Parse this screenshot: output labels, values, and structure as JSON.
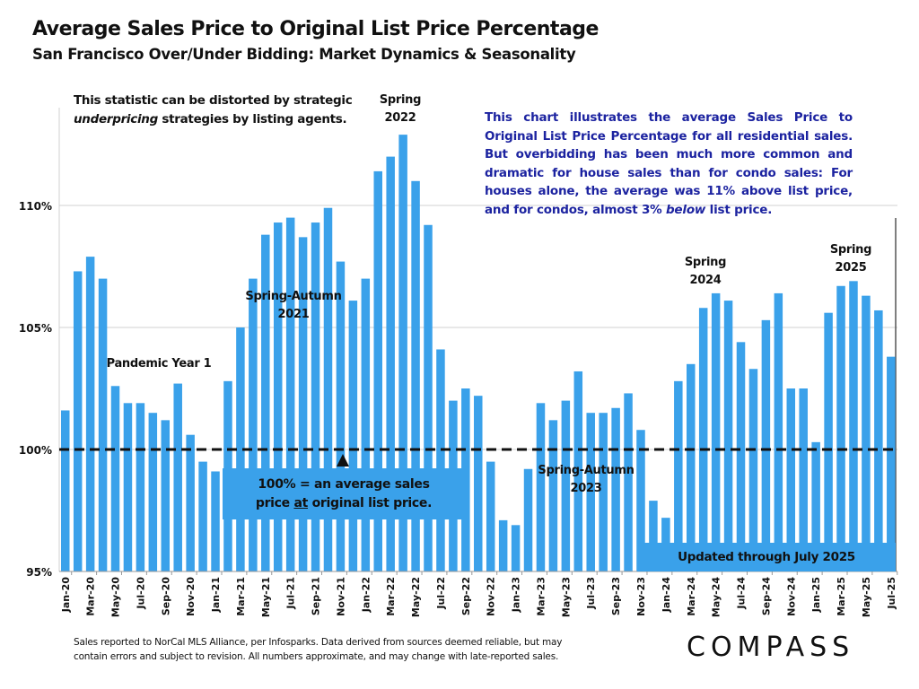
{
  "header": {
    "title": "Average Sales Price to Original List Price Percentage",
    "subtitle": "San Francisco Over/Under Bidding: Market Dynamics & Seasonality"
  },
  "notes": {
    "distortion_line1": "This statistic can be distorted by strategic",
    "distortion_em": "underpricing",
    "distortion_line2_rest": " strategies by listing agents.",
    "blue_part1": "This chart illustrates the average Sales Price to Original List Price Percentage for all residential sales. But overbidding has been much more common and dramatic for house sales than for condo sales:  For houses alone, the average was 11% above list price, and for condos, almost 3% ",
    "blue_em": "below",
    "blue_part2": " list price.",
    "box100_line1": "100% = an average sales",
    "box100_pre": "price ",
    "box100_u": "at",
    "box100_post": " original list price.",
    "updated": "Updated through July 2025",
    "footer1": "Sales reported to NorCal MLS Alliance, per Infosparks. Data derived from sources deemed reliable, but may",
    "footer2": "contain errors and subject to revision. All numbers approximate, and may change with late-reported sales.",
    "logo": "COMPASS"
  },
  "annotations": [
    {
      "id": "pandemic",
      "l1": "Pandemic Year 1",
      "l2": ""
    },
    {
      "id": "sa2021",
      "l1": "Spring-Autumn",
      "l2": "2021"
    },
    {
      "id": "s2022",
      "l1": "Spring",
      "l2": "2022"
    },
    {
      "id": "sa2023",
      "l1": "Spring-Autumn",
      "l2": "2023"
    },
    {
      "id": "s2024",
      "l1": "Spring",
      "l2": "2024"
    },
    {
      "id": "s2025",
      "l1": "Spring",
      "l2": "2025"
    }
  ],
  "colors": {
    "bar": "#3aa1ea",
    "blue_text": "#1c23a0",
    "grid": "#d0d0d0"
  },
  "chart_data": {
    "type": "bar",
    "title": "Average Sales Price to Original List Price Percentage",
    "xlabel": "",
    "ylabel": "",
    "ylim": [
      95,
      115
    ],
    "yticks": [
      95,
      100,
      105,
      110
    ],
    "ytick_labels": [
      "95%",
      "100%",
      "105%",
      "110%"
    ],
    "reference_line": 100,
    "grid": true,
    "categories": [
      "Jan-20",
      "Feb-20",
      "Mar-20",
      "Apr-20",
      "May-20",
      "Jun-20",
      "Jul-20",
      "Aug-20",
      "Sep-20",
      "Oct-20",
      "Nov-20",
      "Dec-20",
      "Jan-21",
      "Feb-21",
      "Mar-21",
      "Apr-21",
      "May-21",
      "Jun-21",
      "Jul-21",
      "Aug-21",
      "Sep-21",
      "Oct-21",
      "Nov-21",
      "Dec-21",
      "Jan-22",
      "Feb-22",
      "Mar-22",
      "Apr-22",
      "May-22",
      "Jun-22",
      "Jul-22",
      "Aug-22",
      "Sep-22",
      "Oct-22",
      "Nov-22",
      "Dec-22",
      "Jan-23",
      "Feb-23",
      "Mar-23",
      "Apr-23",
      "May-23",
      "Jun-23",
      "Jul-23",
      "Aug-23",
      "Sep-23",
      "Oct-23",
      "Nov-23",
      "Dec-23",
      "Jan-24",
      "Feb-24",
      "Mar-24",
      "Apr-24",
      "May-24",
      "Jun-24",
      "Jul-24",
      "Aug-24",
      "Sep-24",
      "Oct-24",
      "Nov-24",
      "Dec-24",
      "Jan-25",
      "Feb-25",
      "Mar-25",
      "Apr-25",
      "May-25",
      "Jun-25",
      "Jul-25"
    ],
    "values": [
      101.6,
      107.3,
      107.9,
      107.0,
      102.6,
      101.9,
      101.9,
      101.5,
      101.2,
      102.7,
      100.6,
      99.5,
      99.1,
      102.8,
      105.0,
      107.0,
      108.8,
      109.3,
      109.5,
      108.7,
      109.3,
      109.9,
      107.7,
      106.1,
      107.0,
      111.4,
      112.0,
      112.9,
      111.0,
      109.2,
      104.1,
      102.0,
      102.5,
      102.2,
      99.5,
      97.1,
      96.9,
      99.2,
      101.9,
      101.2,
      102.0,
      103.2,
      101.5,
      101.5,
      101.7,
      102.3,
      100.8,
      97.9,
      97.2,
      102.8,
      103.5,
      105.8,
      106.4,
      106.1,
      104.4,
      103.3,
      105.3,
      106.4,
      102.5,
      102.5,
      100.3,
      105.6,
      106.7,
      106.9,
      106.3,
      105.7,
      103.8
    ]
  }
}
